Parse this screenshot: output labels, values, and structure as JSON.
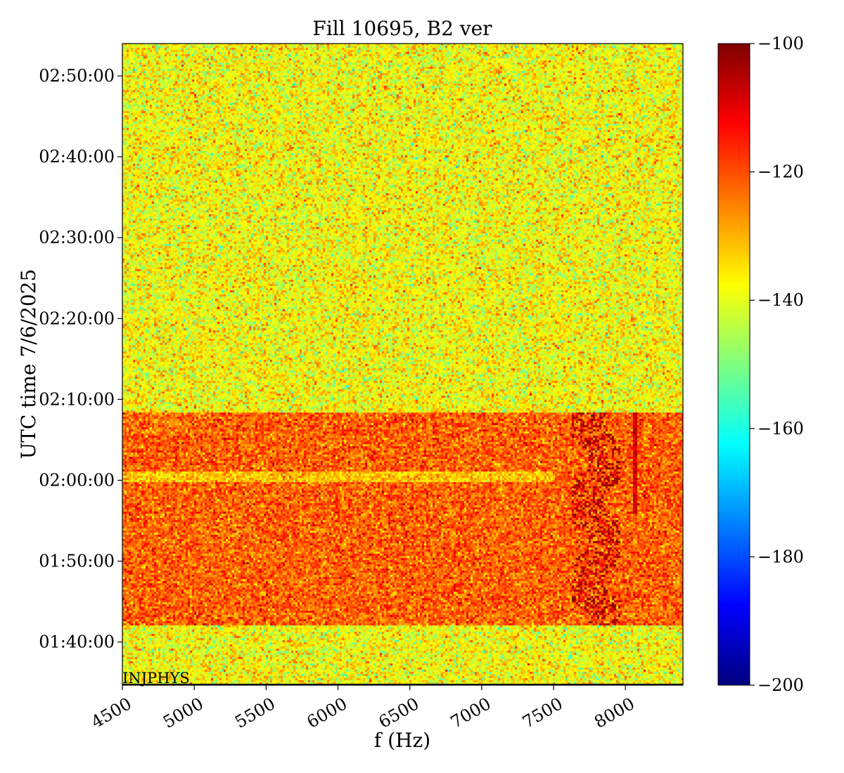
{
  "chart_data": {
    "type": "heatmap",
    "title": "Fill 10695, B2 ver",
    "xlabel": "f (Hz)",
    "ylabel": "UTC time 7/6/2025",
    "xlim": [
      4500,
      8400
    ],
    "x_ticks": [
      {
        "value": 4500,
        "label": "4500"
      },
      {
        "value": 5000,
        "label": "5000"
      },
      {
        "value": 5500,
        "label": "5500"
      },
      {
        "value": 6000,
        "label": "6000"
      },
      {
        "value": 6500,
        "label": "6500"
      },
      {
        "value": 7000,
        "label": "7000"
      },
      {
        "value": 7500,
        "label": "7500"
      },
      {
        "value": 8000,
        "label": "8000"
      }
    ],
    "y_range": [
      "01:34:40",
      "02:54:00"
    ],
    "y_ticks": [
      {
        "value": "01:40:00",
        "label": "01:40:00"
      },
      {
        "value": "01:50:00",
        "label": "01:50:00"
      },
      {
        "value": "02:00:00",
        "label": "02:00:00"
      },
      {
        "value": "02:10:00",
        "label": "02:10:00"
      },
      {
        "value": "02:20:00",
        "label": "02:20:00"
      },
      {
        "value": "02:30:00",
        "label": "02:30:00"
      },
      {
        "value": "02:40:00",
        "label": "02:40:00"
      },
      {
        "value": "02:50:00",
        "label": "02:50:00"
      }
    ],
    "colorbar": {
      "colormap": "jet",
      "range": [
        -200,
        -100
      ],
      "ticks": [
        {
          "value": -100,
          "label": "−100"
        },
        {
          "value": -120,
          "label": "−120"
        },
        {
          "value": -140,
          "label": "−140"
        },
        {
          "value": -160,
          "label": "−160"
        },
        {
          "value": -180,
          "label": "−180"
        },
        {
          "value": -200,
          "label": "−200"
        }
      ]
    },
    "regions": [
      {
        "t_start": "01:34:40",
        "t_end": "01:42:15",
        "level": -138,
        "spread": 7
      },
      {
        "t_start": "01:42:15",
        "t_end": "02:08:30",
        "level": -122,
        "spread": 6
      },
      {
        "t_start": "02:08:30",
        "t_end": "02:54:00",
        "level": -138,
        "spread": 7
      }
    ],
    "features": [
      {
        "f_start": 7620,
        "f_end": 7960,
        "t_start": "01:42:15",
        "t_end": "02:08:30",
        "level": -104,
        "description_label": ""
      },
      {
        "f_start": 4500,
        "f_end": 7500,
        "t_start": "02:00:00",
        "t_end": "02:01:20",
        "level": -132
      },
      {
        "f_start": 8050,
        "f_end": 8070,
        "t_start": "01:56:00",
        "t_end": "02:08:30",
        "level": -108
      }
    ],
    "annotation": "INJPHYS"
  }
}
